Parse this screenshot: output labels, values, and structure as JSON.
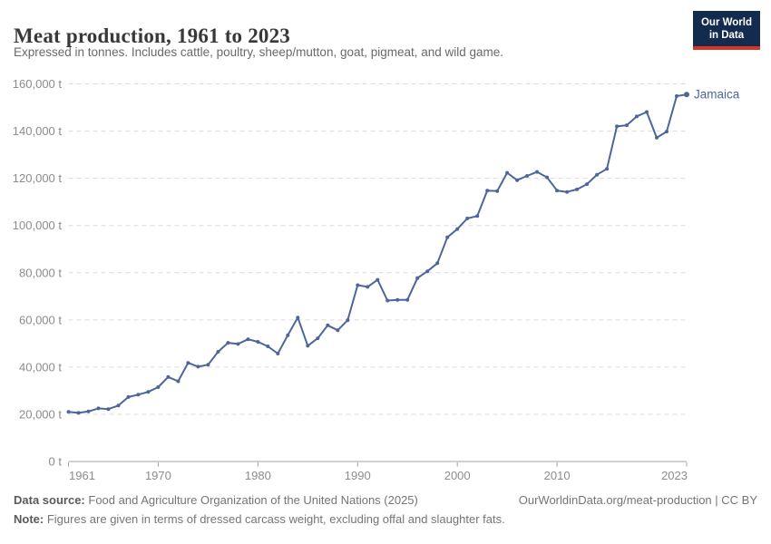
{
  "header": {
    "title": "Meat production, 1961 to 2023",
    "subtitle": "Expressed in tonnes. Includes cattle, poultry, sheep/mutton, goat, pigmeat, and wild game.",
    "logo": {
      "line1": "Our World",
      "line2": "in Data",
      "bg_color": "#132c4d",
      "accent_color": "#d73327"
    }
  },
  "chart_data": {
    "type": "line",
    "title": "Meat production, 1961 to 2023",
    "xlabel": "",
    "ylabel": "",
    "xlim": [
      1961,
      2023
    ],
    "ylim": [
      0,
      160000
    ],
    "grid": "horizontal-dashed",
    "legend_position": "end-of-line-label",
    "grid_color": "#dcdcdc",
    "axis_color": "#a1a1a1",
    "tick_text_color": "#8c8c8c",
    "x_ticks": [
      1961,
      1970,
      1980,
      1990,
      2000,
      2010,
      2023
    ],
    "y_ticks": [
      {
        "value": 0,
        "label": "0 t"
      },
      {
        "value": 20000,
        "label": "20,000 t"
      },
      {
        "value": 40000,
        "label": "40,000 t"
      },
      {
        "value": 60000,
        "label": "60,000 t"
      },
      {
        "value": 80000,
        "label": "80,000 t"
      },
      {
        "value": 100000,
        "label": "100,000 t"
      },
      {
        "value": 120000,
        "label": "120,000 t"
      },
      {
        "value": 140000,
        "label": "140,000 t"
      },
      {
        "value": 160000,
        "label": "160,000 t"
      }
    ],
    "series": [
      {
        "name": "Jamaica",
        "color": "#4C669B",
        "x": [
          1961,
          1962,
          1963,
          1964,
          1965,
          1966,
          1967,
          1968,
          1969,
          1970,
          1971,
          1972,
          1973,
          1974,
          1975,
          1976,
          1977,
          1978,
          1979,
          1980,
          1981,
          1982,
          1983,
          1984,
          1985,
          1986,
          1987,
          1988,
          1989,
          1990,
          1991,
          1992,
          1993,
          1994,
          1995,
          1996,
          1997,
          1998,
          1999,
          2000,
          2001,
          2002,
          2003,
          2004,
          2005,
          2006,
          2007,
          2008,
          2009,
          2010,
          2011,
          2012,
          2013,
          2014,
          2015,
          2016,
          2017,
          2018,
          2019,
          2020,
          2021,
          2022,
          2023
        ],
        "values": [
          21000,
          20600,
          21200,
          22500,
          22200,
          23700,
          27300,
          28300,
          29500,
          31500,
          35800,
          34000,
          41800,
          40200,
          41000,
          46500,
          50300,
          49800,
          51800,
          50700,
          48800,
          45700,
          53500,
          61000,
          49000,
          52200,
          57700,
          55600,
          59900,
          74700,
          74000,
          77000,
          68200,
          68500,
          68500,
          77700,
          80600,
          84000,
          95000,
          98500,
          103000,
          104000,
          114800,
          114600,
          122300,
          119200,
          121000,
          122700,
          120400,
          114800,
          114200,
          115300,
          117500,
          121500,
          124000,
          142000,
          142500,
          146200,
          148100,
          137200,
          139800,
          154800,
          155500
        ]
      }
    ]
  },
  "footer": {
    "source_label": "Data source:",
    "source_text": "Food and Agriculture Organization of the United Nations (2025)",
    "rights": "OurWorldinData.org/meat-production | CC BY",
    "note_label": "Note:",
    "note_text": "Figures are given in terms of dressed carcass weight, excluding offal and slaughter fats."
  }
}
